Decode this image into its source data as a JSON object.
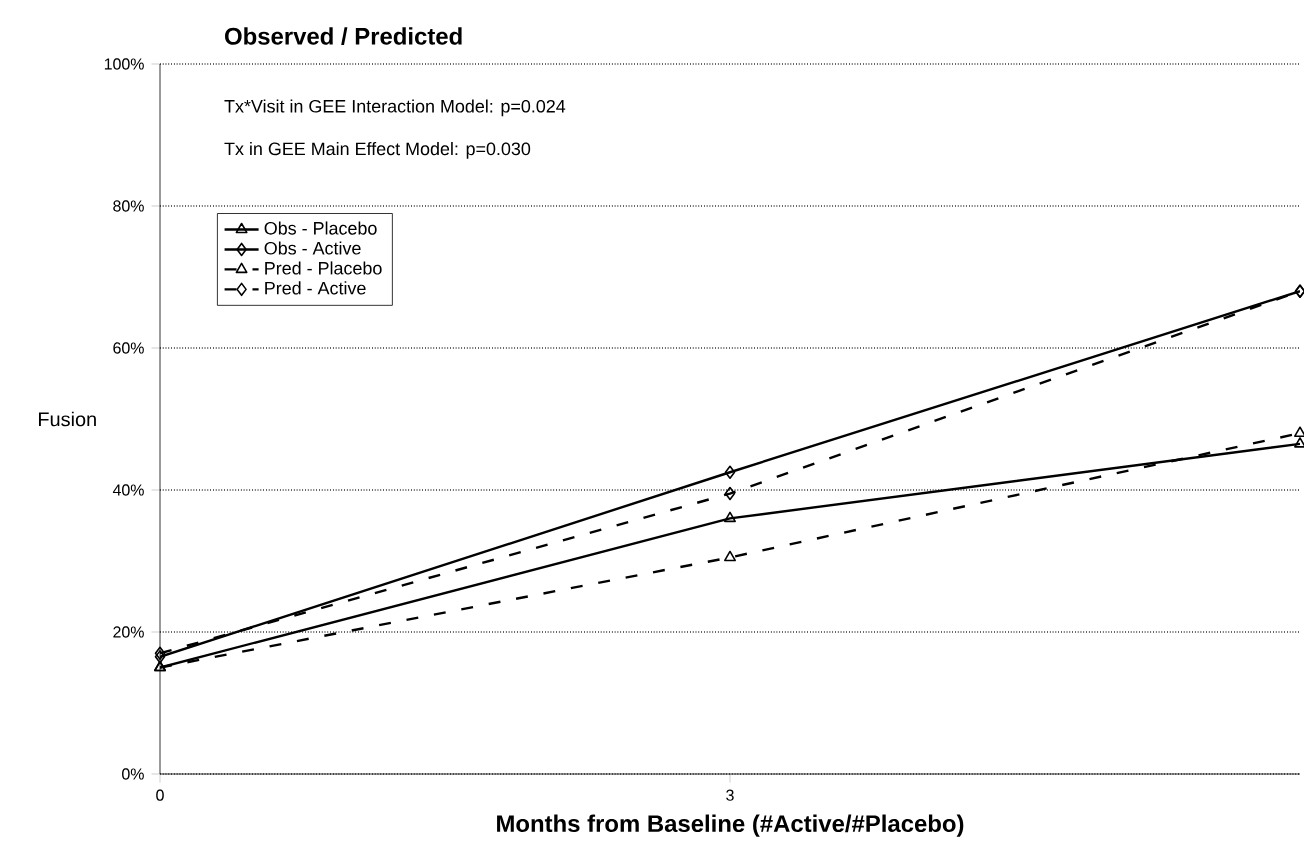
{
  "chart_data": {
    "type": "line",
    "title": "Observed / Predicted",
    "xlabel": "Months from Baseline (#Active/#Placebo)",
    "ylabel": "Fusion",
    "annotations": [
      "Tx*Visit in GEE Interaction Model: p=0.024",
      "Tx in GEE Main Effect Model: p=0.030"
    ],
    "x": [
      0,
      3,
      6
    ],
    "series": [
      {
        "name": "Obs - Placebo",
        "color": "#000000",
        "values": [
          15,
          36,
          46.5
        ],
        "marker": "triangle",
        "line_style": "solid"
      },
      {
        "name": "Obs - Active",
        "color": "#000000",
        "values": [
          16.5,
          42.5,
          68
        ],
        "marker": "diamond",
        "line_style": "solid"
      },
      {
        "name": "Pred - Placebo",
        "color": "#000000",
        "values": [
          15,
          30.5,
          48
        ],
        "marker": "triangle",
        "line_style": "dashed"
      },
      {
        "name": "Pred - Active",
        "color": "#000000",
        "values": [
          17,
          39.5,
          68
        ],
        "marker": "diamond",
        "line_style": "dashed"
      }
    ],
    "xlim": [
      0,
      6
    ],
    "xticks": [
      0,
      3
    ],
    "ylim": [
      0,
      100
    ],
    "yticks": [
      {
        "value": 0,
        "label": "0%"
      },
      {
        "value": 20,
        "label": "20%"
      },
      {
        "value": 40,
        "label": "40%"
      },
      {
        "value": 60,
        "label": "60%"
      },
      {
        "value": 80,
        "label": "80%"
      },
      {
        "value": 100,
        "label": "100%"
      }
    ],
    "grid": "y",
    "legend": "top left"
  }
}
